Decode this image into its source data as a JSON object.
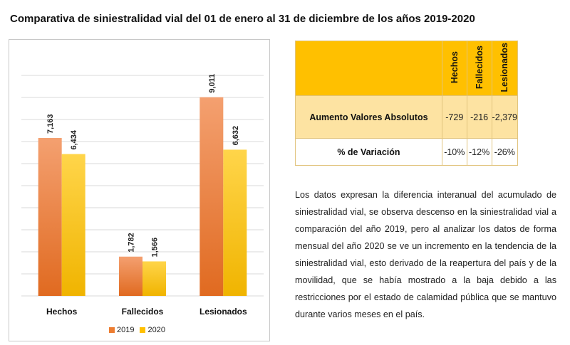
{
  "title": "Comparativa de siniestralidad vial del 01 de enero al 31 de diciembre de los años 2019-2020",
  "colors": {
    "series_2019": "#ed7d31",
    "series_2020": "#ffc000",
    "table_header": "#ffc000",
    "table_highlight": "#fde3a2"
  },
  "chart_data": {
    "type": "bar",
    "categories": [
      "Hechos",
      "Fallecidos",
      "Lesionados"
    ],
    "series": [
      {
        "name": "2019",
        "values": [
          7163,
          1782,
          9011
        ],
        "labels": [
          "7,163",
          "1,782",
          "9,011"
        ]
      },
      {
        "name": "2020",
        "values": [
          6434,
          1566,
          6632
        ],
        "labels": [
          "6,434",
          "1,566",
          "6,632"
        ]
      }
    ],
    "ylim": [
      0,
      10000
    ],
    "grid": true,
    "legend": "bottom"
  },
  "table": {
    "columns": [
      "Hechos",
      "Fallecidos",
      "Lesionados"
    ],
    "rows": [
      {
        "label": "Aumento Valores Absolutos",
        "values": [
          "-729",
          "-216",
          "-2,379"
        ]
      },
      {
        "label": "% de Variación",
        "values": [
          "-10%",
          "-12%",
          "-26%"
        ]
      }
    ]
  },
  "paragraph": "Los datos expresan la diferencia interanual del acumulado de siniestralidad vial, se observa descenso en la siniestralidad vial a comparación del año 2019, pero al analizar los datos de forma mensual del año 2020 se ve un incremento en la tendencia de la siniestralidad vial, esto derivado de la reapertura del país y de la movilidad, que se había mostrado a la baja debido a las restricciones por el estado de calamidad pública que se mantuvo durante varios meses en el país."
}
